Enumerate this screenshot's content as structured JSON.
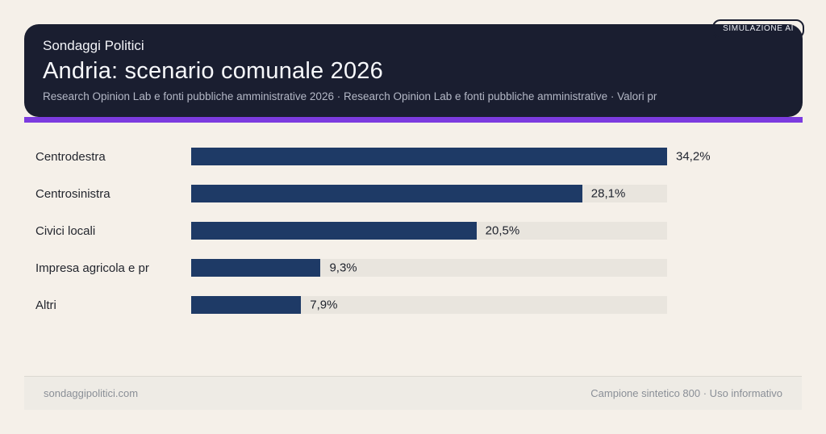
{
  "badge": {
    "label": "SIMULAZIONE AI"
  },
  "header": {
    "brand": "Sondaggi Politici",
    "title": "Andria: scenario comunale 2026",
    "subtitle": "Research Opinion Lab e fonti pubbliche amministrative 2026 · Research Opinion Lab e fonti pubbliche amministrative · Valori pr"
  },
  "chart_data": {
    "type": "bar",
    "orientation": "horizontal",
    "title": "Andria: scenario comunale 2026",
    "categories": [
      "Centrodestra",
      "Centrosinistra",
      "Civici locali",
      "Impresa agricola e pr",
      "Altri"
    ],
    "values": [
      34.2,
      28.1,
      20.5,
      9.3,
      7.9
    ],
    "value_labels": [
      "34,2%",
      "28,1%",
      "20,5%",
      "9,3%",
      "7,9%"
    ],
    "unit": "%",
    "scale_max": 34.2,
    "grid": false,
    "legend": false,
    "bar_color": "#1e3a66",
    "track_color": "#e9e5de"
  },
  "footer": {
    "left": "sondaggipolitici.com",
    "right": "Campione sintetico 800 · Uso informativo"
  },
  "colors": {
    "background": "#f5f0e9",
    "header_card": "#1a1e30",
    "accent": "#7c3bdf",
    "bar": "#1e3a66",
    "track": "#e9e5de",
    "footer_bg": "#eeebe5"
  }
}
